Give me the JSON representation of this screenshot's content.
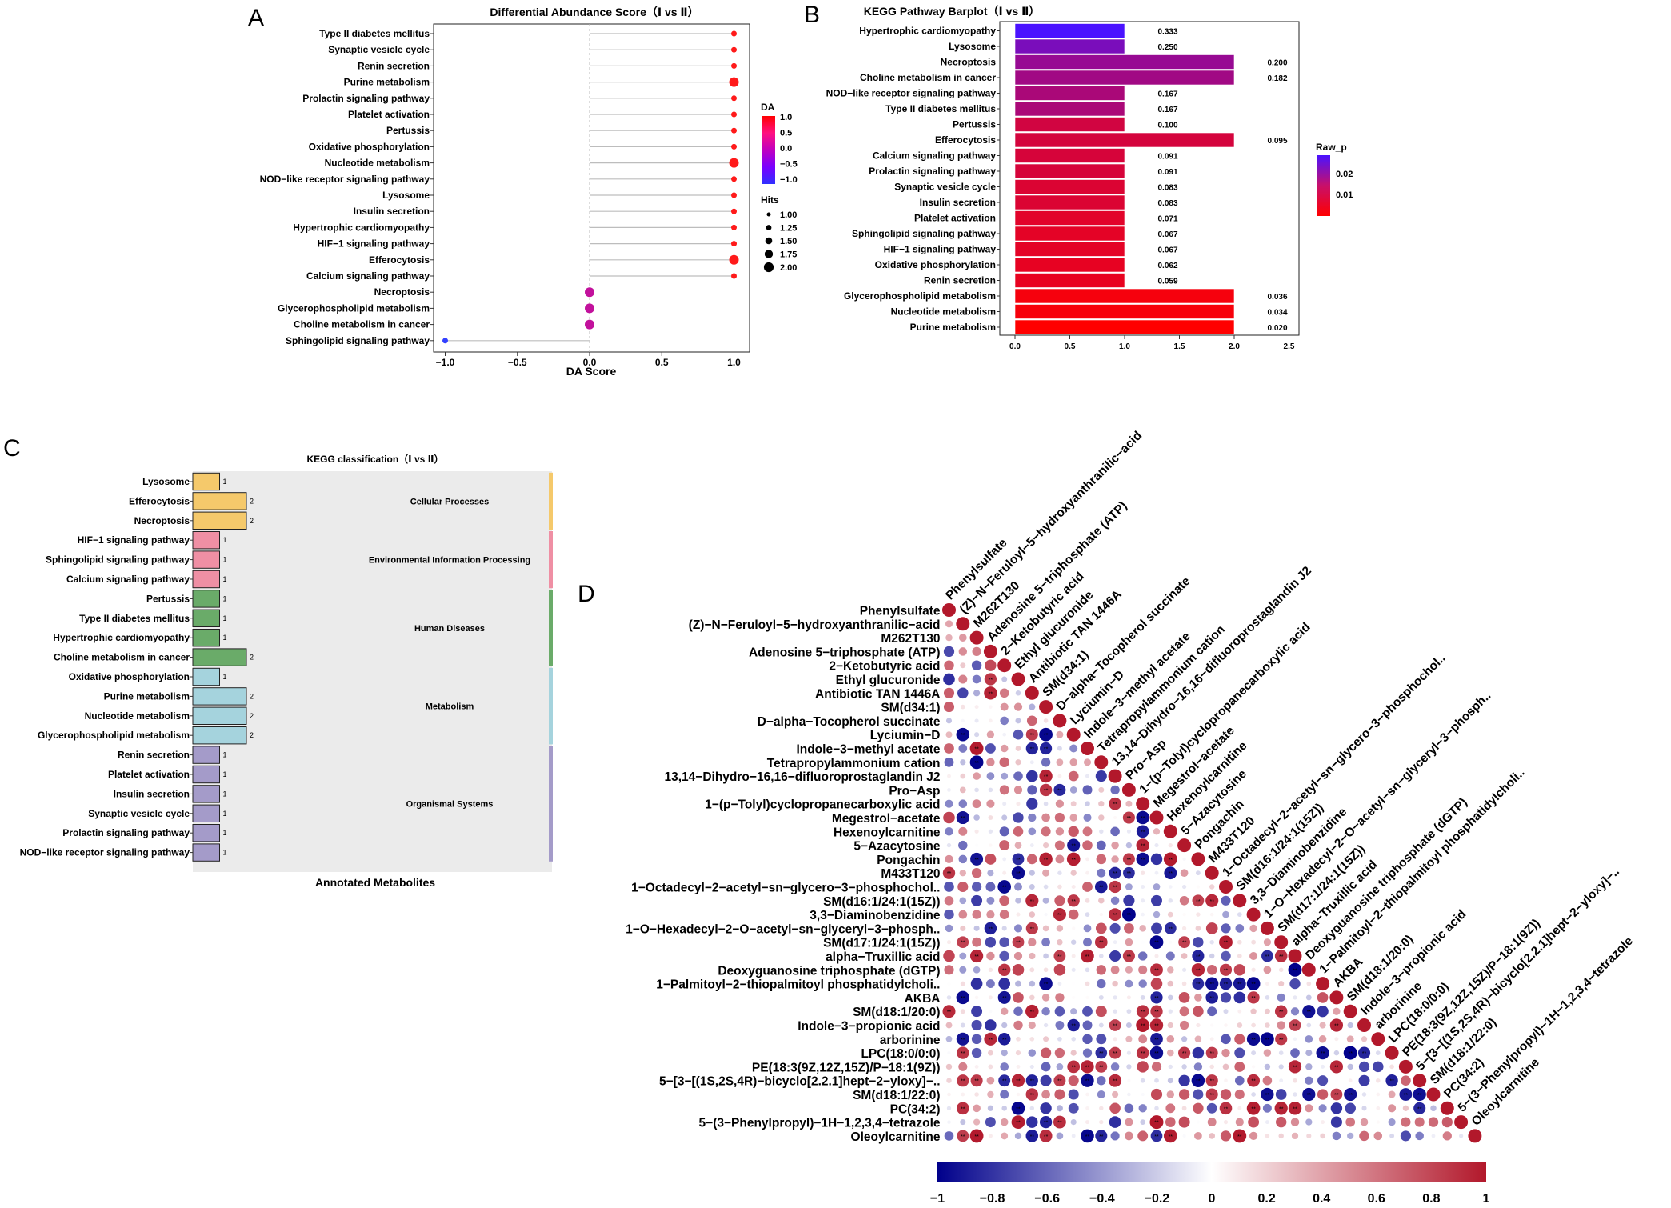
{
  "panel_letters": [
    "A",
    "B",
    "C",
    "D"
  ],
  "chart_data": [
    {
      "id": "A",
      "type": "scatter",
      "subtype": "lollipop",
      "title": "Differential Abundance Score（Ⅰ vs Ⅱ）",
      "xlabel": "DA Score",
      "xlim": [
        -1.1,
        1.1
      ],
      "xticks": [
        -1.0,
        -0.5,
        0.0,
        0.5,
        1.0
      ],
      "xtick_labels": [
        "−1.0",
        "−0.5",
        "0.0",
        "0.5",
        "1.0"
      ],
      "grid": true,
      "categories": [
        "Type II diabetes mellitus",
        "Synaptic vesicle cycle",
        "Renin secretion",
        "Purine metabolism",
        "Prolactin signaling pathway",
        "Platelet activation",
        "Pertussis",
        "Oxidative phosphorylation",
        "Nucleotide metabolism",
        "NOD−like receptor signaling pathway",
        "Lysosome",
        "Insulin secretion",
        "Hypertrophic cardiomyopathy",
        "HIF−1 signaling pathway",
        "Efferocytosis",
        "Calcium signaling pathway",
        "Necroptosis",
        "Glycerophospholipid metabolism",
        "Choline metabolism in cancer",
        "Sphingolipid signaling pathway"
      ],
      "values": [
        1,
        1,
        1,
        1,
        1,
        1,
        1,
        1,
        1,
        1,
        1,
        1,
        1,
        1,
        1,
        1,
        0,
        0,
        0,
        -1
      ],
      "hits": [
        1,
        1,
        1,
        2,
        1,
        1,
        1,
        1,
        2,
        1,
        1,
        1,
        1,
        1,
        2,
        1,
        2,
        2,
        2,
        1
      ],
      "legend_da": {
        "title": "DA",
        "labels": [
          "1.0",
          "0.5",
          "0.0",
          "−0.5",
          "−1.0"
        ],
        "colors": [
          "#ff0000",
          "#ff1080",
          "#c000c0",
          "#7a00ff",
          "#3030ff"
        ]
      },
      "legend_hits": {
        "title": "Hits",
        "labels": [
          "1.00",
          "1.25",
          "1.50",
          "1.75",
          "2.00"
        ]
      },
      "colors": {
        "pos": "#ff1a1a",
        "zero": "#c2119c",
        "neg": "#3340ff",
        "stem": "#bdbdbd"
      }
    },
    {
      "id": "B",
      "type": "bar",
      "orientation": "horizontal",
      "title": "KEGG Pathway Barplot（Ⅰ vs Ⅱ）",
      "xlim": [
        0,
        2.5
      ],
      "xticks": [
        0.0,
        0.5,
        1.0,
        1.5,
        2.0,
        2.5
      ],
      "xtick_labels": [
        "0.0",
        "0.5",
        "1.0",
        "1.5",
        "2.0",
        "2.5"
      ],
      "categories": [
        "Hypertrophic cardiomyopathy",
        "Lysosome",
        "Necroptosis",
        "Choline metabolism in cancer",
        "NOD−like receptor signaling pathway",
        "Type II diabetes mellitus",
        "Pertussis",
        "Efferocytosis",
        "Calcium signaling pathway",
        "Prolactin signaling pathway",
        "Synaptic vesicle cycle",
        "Insulin secretion",
        "Platelet activation",
        "Sphingolipid signaling pathway",
        "HIF−1 signaling pathway",
        "Oxidative phosphorylation",
        "Renin secretion",
        "Glycerophospholipid metabolism",
        "Nucleotide metabolism",
        "Purine metabolism"
      ],
      "values": [
        1,
        1,
        2,
        2,
        1,
        1,
        1,
        2,
        1,
        1,
        1,
        1,
        1,
        1,
        1,
        1,
        1,
        2,
        2,
        2
      ],
      "raw_p": [
        0.333,
        0.25,
        0.2,
        0.182,
        0.167,
        0.167,
        0.1,
        0.095,
        0.091,
        0.091,
        0.083,
        0.083,
        0.071,
        0.067,
        0.067,
        0.062,
        0.059,
        0.036,
        0.034,
        0.02
      ],
      "labels": [
        "0.333",
        "0.250",
        "0.200",
        "0.182",
        "0.167",
        "0.167",
        "0.100",
        "0.095",
        "0.091",
        "0.091",
        "0.083",
        "0.083",
        "0.071",
        "0.067",
        "0.067",
        "0.062",
        "0.059",
        "0.036",
        "0.034",
        "0.020"
      ],
      "legend": {
        "title": "Raw_p",
        "labels": [
          "0.02",
          "0.01"
        ]
      }
    },
    {
      "id": "C",
      "type": "bar",
      "orientation": "horizontal",
      "title": "KEGG classification（Ⅰ vs Ⅱ）",
      "xlabel": "Annotated Metabolites",
      "categories": [
        "Lysosome",
        "Efferocytosis",
        "Necroptosis",
        "HIF−1 signaling pathway",
        "Sphingolipid signaling pathway",
        "Calcium signaling pathway",
        "Pertussis",
        "Type II diabetes mellitus",
        "Hypertrophic cardiomyopathy",
        "Choline metabolism in cancer",
        "Oxidative phosphorylation",
        "Purine metabolism",
        "Nucleotide metabolism",
        "Glycerophospholipid metabolism",
        "Renin secretion",
        "Platelet activation",
        "Insulin secretion",
        "Synaptic vesicle cycle",
        "Prolactin signaling pathway",
        "NOD−like receptor signaling pathway"
      ],
      "values": [
        1,
        2,
        2,
        1,
        1,
        1,
        1,
        1,
        1,
        2,
        1,
        2,
        2,
        2,
        1,
        1,
        1,
        1,
        1,
        1
      ],
      "groups": [
        {
          "name": "Cellular Processes",
          "count": 3,
          "color": "#f5c96b"
        },
        {
          "name": "Environmental Information Processing",
          "count": 3,
          "color": "#ef8fa4"
        },
        {
          "name": "Human Diseases",
          "count": 4,
          "color": "#6aab69"
        },
        {
          "name": "Metabolism",
          "count": 4,
          "color": "#a5d3dd"
        },
        {
          "name": "Organismal Systems",
          "count": 6,
          "color": "#a49bc9"
        }
      ]
    },
    {
      "id": "D",
      "type": "heatmap",
      "subtype": "correlation-lower-triangle",
      "labels": [
        "Phenylsulfate",
        "(Z)−N−Feruloyl−5−hydroxyanthranilic−acid",
        "M262T130",
        "Adenosine 5−triphosphate (ATP)",
        "2−Ketobutyric acid",
        "Ethyl glucuronide",
        "Antibiotic TAN 1446A",
        "SM(d34:1)",
        "D−alpha−Tocopherol succinate",
        "Lyciumin−D",
        "Indole−3−methyl acetate",
        "Tetrapropylammonium cation",
        "13,14−Dihydro−16,16−difluoroprostaglandin J2",
        "Pro−Asp",
        "1−(p−Tolyl)cyclopropanecarboxylic acid",
        "Megestrol−acetate",
        "Hexenoylcarnitine",
        "5−Azacytosine",
        "Pongachin",
        "M433T120",
        "1−Octadecyl−2−acetyl−sn−glycero−3−phosphochol..",
        "SM(d16:1/24:1(15Z))",
        "3,3−Diaminobenzidine",
        "1−O−Hexadecyl−2−O−acetyl−sn−glyceryl−3−phosph..",
        "SM(d17:1/24:1(15Z))",
        "alpha−Truxillic acid",
        "Deoxyguanosine triphosphate (dGTP)",
        "1−Palmitoyl−2−thiopalmitoyl phosphatidylcholi..",
        "AKBA",
        "SM(d18:1/20:0)",
        "Indole−3−propionic acid",
        "arborinine",
        "LPC(18:0/0:0)",
        "PE(18:3(9Z,12Z,15Z)/P−18:1(9Z))",
        "5−[3−[(1S,2S,4R)−bicyclo[2.2.1]hept−2−yloxy]−..",
        "SM(d18:1/22:0)",
        "PC(34:2)",
        "5−(3−Phenylpropyl)−1H−1,2,3,4−tetrazole",
        "Oleoylcarnitine"
      ],
      "colorbar": {
        "range": [
          -1,
          1
        ],
        "ticks": [
          "−1",
          "−0.8",
          "−0.6",
          "−0.4",
          "−0.2",
          "0",
          "0.2",
          "0.4",
          "0.6",
          "0.8",
          "1"
        ],
        "low": "#00008b",
        "mid": "#ffffff",
        "high": "#b2182b"
      },
      "significance_mark": "**"
    }
  ]
}
